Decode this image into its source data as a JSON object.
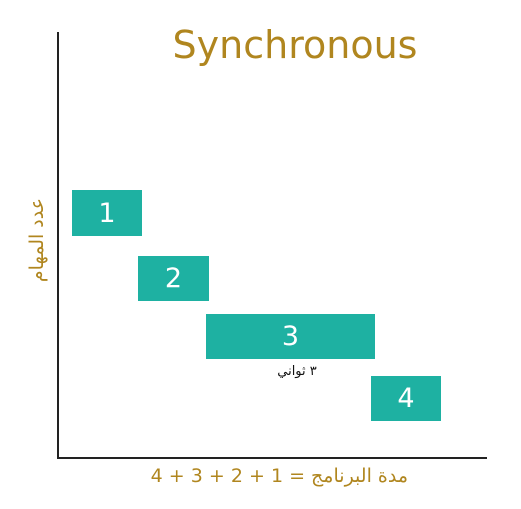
{
  "title": "Synchronous",
  "y_axis_label": "عدد المهام",
  "x_axis_label": "مدة البرنامج = 1 + 2 + 3 + 4",
  "task_duration_label": "٣ ثواني",
  "tasks": [
    {
      "label": "1"
    },
    {
      "label": "2"
    },
    {
      "label": "3"
    },
    {
      "label": "4"
    }
  ],
  "colors": {
    "accent": "#b0861f",
    "task_fill": "#1eb1a2",
    "axis": "#222222",
    "task_text": "#ffffff",
    "background": "#ffffff"
  }
}
